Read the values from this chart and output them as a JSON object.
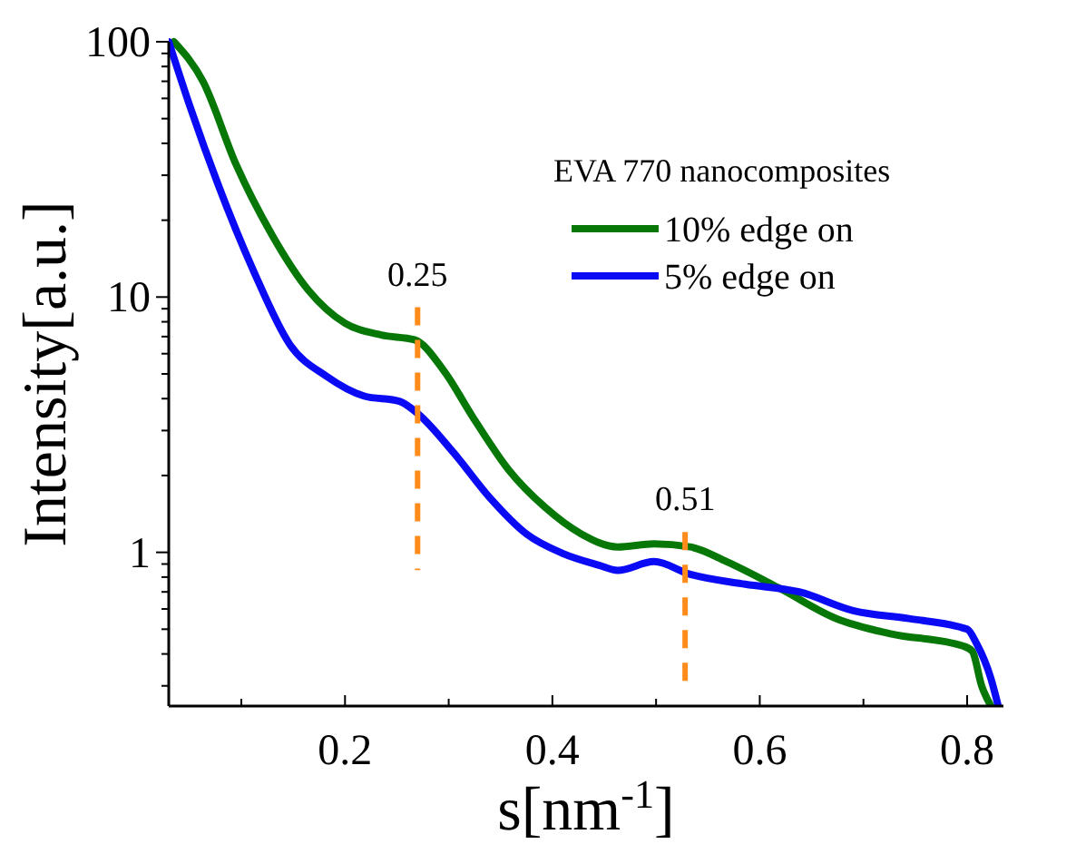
{
  "chart_data": {
    "type": "line",
    "xlabel": "s[nm$^{-1}$]",
    "ylabel": "Intensity[a.u.]",
    "legend_title": "EVA 770 nanocomposites",
    "legend": "top right",
    "log": "y",
    "grid": false,
    "line_style": "solid",
    "annotations": [
      "0.25",
      "0.51"
    ],
    "xlim": [
      0.03,
      0.835
    ],
    "ylim": [
      0.25,
      100
    ],
    "xticks": [
      {
        "value": 0.1,
        "label": null
      },
      0.2,
      {
        "value": 0.3,
        "label": null
      },
      0.4,
      {
        "value": 0.5,
        "label": null
      },
      0.6,
      {
        "value": 0.7,
        "label": null
      },
      0.8
    ],
    "yticks": [
      {
        "value": 0.3,
        "label": null
      },
      {
        "value": 0.4,
        "label": null
      },
      {
        "value": 0.5,
        "label": null
      },
      {
        "value": 0.6,
        "label": null
      },
      {
        "value": 0.7,
        "label": null
      },
      {
        "value": 0.8,
        "label": null
      },
      {
        "value": 0.9,
        "label": null
      },
      1,
      {
        "value": 2,
        "label": null
      },
      {
        "value": 3,
        "label": null
      },
      {
        "value": 4,
        "label": null
      },
      {
        "value": 5,
        "label": null
      },
      {
        "value": 6,
        "label": null
      },
      {
        "value": 7,
        "label": null
      },
      {
        "value": 8,
        "label": null
      },
      {
        "value": 9,
        "label": null
      },
      10,
      {
        "value": 20,
        "label": null
      },
      {
        "value": 30,
        "label": null
      },
      {
        "value": 40,
        "label": null
      },
      {
        "value": 50,
        "label": null
      },
      {
        "value": 60,
        "label": null
      },
      {
        "value": 70,
        "label": null
      },
      {
        "value": 80,
        "label": null
      },
      {
        "value": 90,
        "label": null
      },
      100
    ],
    "series": [
      {
        "name": "10% edge on",
        "color": "#077807",
        "x": [
          0.035,
          0.063,
          0.095,
          0.13,
          0.165,
          0.2,
          0.235,
          0.267,
          0.296,
          0.323,
          0.358,
          0.393,
          0.428,
          0.463,
          0.498,
          0.533,
          0.568,
          0.62,
          0.674,
          0.726,
          0.796,
          0.805,
          0.814,
          0.823
        ],
        "values": [
          100,
          70,
          33,
          17.4,
          10.6,
          7.9,
          7.1,
          6.8,
          5.1,
          3.4,
          2.1,
          1.5,
          1.18,
          1.05,
          1.08,
          1.05,
          0.92,
          0.72,
          0.55,
          0.48,
          0.43,
          0.41,
          0.3,
          0.25
        ]
      },
      {
        "name": "5% edge on",
        "color": "#0a0af5",
        "x": [
          0.03,
          0.051,
          0.077,
          0.112,
          0.147,
          0.182,
          0.218,
          0.253,
          0.27,
          0.305,
          0.34,
          0.375,
          0.41,
          0.445,
          0.463,
          0.498,
          0.533,
          0.586,
          0.638,
          0.691,
          0.744,
          0.8,
          0.809,
          0.823,
          0.83
        ],
        "values": [
          100,
          55,
          28,
          12.6,
          6.5,
          4.9,
          4.1,
          3.9,
          3.5,
          2.45,
          1.63,
          1.18,
          0.99,
          0.89,
          0.85,
          0.92,
          0.82,
          0.75,
          0.7,
          0.59,
          0.55,
          0.5,
          0.44,
          0.32,
          0.25
        ]
      }
    ],
    "ref_lines": [
      {
        "axis": "x",
        "value": 0.27,
        "color": "#ff8c1a",
        "line_style": "dashed"
      },
      {
        "axis": "x",
        "value": 0.528,
        "color": "#ff8c1a",
        "line_style": "dashed"
      }
    ]
  }
}
